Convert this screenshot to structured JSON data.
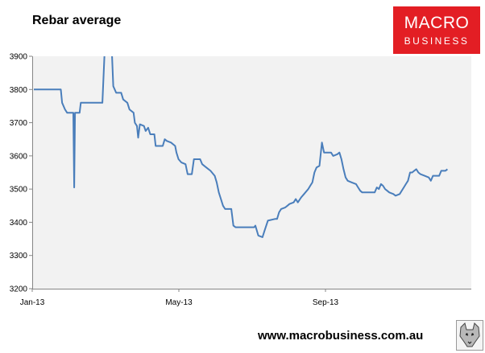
{
  "header": {
    "title": "Rebar average"
  },
  "logo": {
    "line1": "MACRO",
    "line2": "BUSINESS",
    "color": "#e31e24"
  },
  "footer": {
    "website": "www.macrobusiness.com.au",
    "mascot_icon": "wolf-icon"
  },
  "chart_data": {
    "type": "line",
    "title": "Rebar average",
    "xlabel": "",
    "ylabel": "",
    "x_tick_labels": [
      "Jan-13",
      "May-13",
      "Sep-13"
    ],
    "y_ticks": [
      3200,
      3300,
      3400,
      3500,
      3600,
      3700,
      3800,
      3900
    ],
    "ylim": [
      3200,
      3900
    ],
    "xlim": [
      0,
      100
    ],
    "grid": false,
    "line_color": "#4a7ebb",
    "plot_background": "#f2f2f2",
    "series": [
      {
        "points": [
          [
            0,
            3800
          ],
          [
            4,
            3800
          ],
          [
            6.5,
            3800
          ],
          [
            6.8,
            3760
          ],
          [
            7.5,
            3740
          ],
          [
            8,
            3730
          ],
          [
            9.5,
            3730
          ],
          [
            9.7,
            3505
          ],
          [
            9.9,
            3730
          ],
          [
            11,
            3730
          ],
          [
            11.3,
            3760
          ],
          [
            16.5,
            3760
          ],
          [
            17,
            3905
          ],
          [
            18.8,
            3905
          ],
          [
            19.1,
            3810
          ],
          [
            19.8,
            3790
          ],
          [
            21,
            3790
          ],
          [
            21.5,
            3770
          ],
          [
            22.5,
            3760
          ],
          [
            23,
            3740
          ],
          [
            24,
            3730
          ],
          [
            24.3,
            3700
          ],
          [
            24.8,
            3690
          ],
          [
            25.1,
            3655
          ],
          [
            25.5,
            3695
          ],
          [
            26.5,
            3690
          ],
          [
            26.9,
            3675
          ],
          [
            27.5,
            3685
          ],
          [
            28,
            3665
          ],
          [
            29,
            3665
          ],
          [
            29.3,
            3630
          ],
          [
            31,
            3630
          ],
          [
            31.5,
            3650
          ],
          [
            32,
            3645
          ],
          [
            33,
            3640
          ],
          [
            34,
            3630
          ],
          [
            34.3,
            3610
          ],
          [
            34.8,
            3590
          ],
          [
            35.5,
            3580
          ],
          [
            36.5,
            3575
          ],
          [
            37,
            3545
          ],
          [
            38,
            3545
          ],
          [
            38.5,
            3590
          ],
          [
            40,
            3590
          ],
          [
            40.5,
            3575
          ],
          [
            41.5,
            3565
          ],
          [
            42.5,
            3555
          ],
          [
            43.5,
            3540
          ],
          [
            44,
            3520
          ],
          [
            44.5,
            3490
          ],
          [
            45,
            3470
          ],
          [
            45.5,
            3450
          ],
          [
            46,
            3440
          ],
          [
            47.5,
            3440
          ],
          [
            48,
            3390
          ],
          [
            48.5,
            3385
          ],
          [
            53,
            3385
          ],
          [
            53.3,
            3390
          ],
          [
            54,
            3360
          ],
          [
            55,
            3355
          ],
          [
            55.5,
            3375
          ],
          [
            56.3,
            3405
          ],
          [
            58,
            3410
          ],
          [
            58.5,
            3410
          ],
          [
            59,
            3430
          ],
          [
            59.5,
            3440
          ],
          [
            60.5,
            3445
          ],
          [
            61,
            3450
          ],
          [
            61.5,
            3455
          ],
          [
            62.5,
            3460
          ],
          [
            63,
            3470
          ],
          [
            63.5,
            3460
          ],
          [
            64.3,
            3475
          ],
          [
            65,
            3485
          ],
          [
            66,
            3500
          ],
          [
            66.5,
            3510
          ],
          [
            67,
            3520
          ],
          [
            67.5,
            3550
          ],
          [
            68,
            3565
          ],
          [
            68.7,
            3570
          ],
          [
            69.3,
            3640
          ],
          [
            69.8,
            3610
          ],
          [
            71.5,
            3610
          ],
          [
            72,
            3600
          ],
          [
            73,
            3605
          ],
          [
            73.5,
            3610
          ],
          [
            74,
            3590
          ],
          [
            74.5,
            3560
          ],
          [
            75,
            3535
          ],
          [
            75.5,
            3525
          ],
          [
            76.5,
            3520
          ],
          [
            77.5,
            3515
          ],
          [
            78,
            3505
          ],
          [
            78.5,
            3495
          ],
          [
            79,
            3490
          ],
          [
            82,
            3490
          ],
          [
            82.5,
            3505
          ],
          [
            83,
            3500
          ],
          [
            83.5,
            3515
          ],
          [
            84,
            3510
          ],
          [
            84.5,
            3500
          ],
          [
            85,
            3495
          ],
          [
            85.5,
            3490
          ],
          [
            86.5,
            3485
          ],
          [
            87,
            3480
          ],
          [
            88,
            3485
          ],
          [
            89,
            3505
          ],
          [
            89.5,
            3515
          ],
          [
            90,
            3525
          ],
          [
            90.5,
            3550
          ],
          [
            91,
            3550
          ],
          [
            91.5,
            3555
          ],
          [
            92,
            3560
          ],
          [
            92.5,
            3550
          ],
          [
            93,
            3545
          ],
          [
            94,
            3540
          ],
          [
            95,
            3535
          ],
          [
            95.5,
            3525
          ],
          [
            96,
            3540
          ],
          [
            97.5,
            3540
          ],
          [
            98,
            3555
          ],
          [
            99,
            3555
          ],
          [
            99.5,
            3560
          ]
        ]
      }
    ]
  }
}
